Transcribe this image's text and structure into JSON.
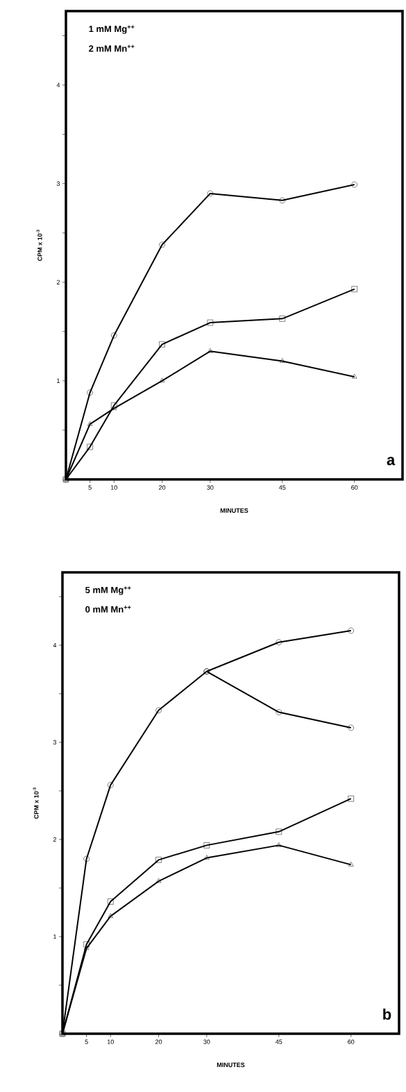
{
  "chart_data": [
    {
      "type": "line",
      "xlabel": "MINUTES",
      "ylabel": "CPM x 10$^{-3}$",
      "xlim": [
        0,
        70
      ],
      "ylim": [
        0,
        4.75
      ],
      "xticks": [
        5,
        10,
        20,
        30,
        45,
        60
      ],
      "yticks": [
        {
          "value": 0.5,
          "label": null
        },
        1,
        {
          "value": 1.5,
          "label": null
        },
        2,
        {
          "value": 2.5,
          "label": null
        },
        3,
        {
          "value": 3.5,
          "label": null
        },
        4,
        {
          "value": 4.5,
          "label": null
        }
      ],
      "annotations": [
        "1 mM Mg$^{++}$",
        "2 mM Mn$^{++}$",
        "a"
      ],
      "series": [
        {
          "color": "#000000",
          "marker": "circle",
          "x": [
            0,
            5,
            10,
            20,
            30,
            45,
            60
          ],
          "values": [
            0,
            0.88,
            1.46,
            2.38,
            2.9,
            2.83,
            2.99
          ]
        },
        {
          "color": "#000000",
          "marker": "square",
          "x": [
            0,
            5,
            10,
            20,
            30,
            45,
            60
          ],
          "values": [
            0,
            0.33,
            0.75,
            1.37,
            1.59,
            1.63,
            1.93
          ]
        },
        {
          "color": "#000000",
          "marker": "triangle",
          "x": [
            0,
            5,
            10,
            20,
            30,
            45,
            60
          ],
          "values": [
            0,
            0.56,
            0.72,
            1.0,
            1.3,
            1.2,
            1.04
          ]
        }
      ]
    },
    {
      "type": "line",
      "xlabel": "MINUTES",
      "ylabel": "CPM x 10$^{-3}$",
      "xlim": [
        0,
        70
      ],
      "ylim": [
        0,
        4.75
      ],
      "xticks": [
        5,
        10,
        20,
        30,
        45,
        60
      ],
      "yticks": [
        {
          "value": 0.5,
          "label": null
        },
        1,
        {
          "value": 1.5,
          "label": null
        },
        2,
        {
          "value": 2.5,
          "label": null
        },
        3,
        {
          "value": 3.5,
          "label": null
        },
        4,
        {
          "value": 4.5,
          "label": null
        }
      ],
      "annotations": [
        "5 mM Mg$^{++}$",
        "0 mM Mn$^{++}$",
        "b"
      ],
      "series": [
        {
          "color": "#000000",
          "marker": "circle",
          "x": [
            30,
            45,
            60
          ],
          "values": [
            3.73,
            3.31,
            3.15
          ]
        },
        {
          "color": "#000000",
          "marker": "circle",
          "x": [
            0,
            5,
            10,
            20,
            30,
            45,
            60
          ],
          "values": [
            0,
            1.8,
            2.56,
            3.33,
            3.73,
            4.03,
            4.15
          ]
        },
        {
          "color": "#000000",
          "marker": "square",
          "x": [
            0,
            5,
            10,
            20,
            30,
            45,
            60
          ],
          "values": [
            0,
            0.92,
            1.36,
            1.79,
            1.94,
            2.08,
            2.42
          ]
        },
        {
          "color": "#000000",
          "marker": "triangle",
          "x": [
            0,
            5,
            10,
            20,
            30,
            45,
            60
          ],
          "values": [
            0,
            0.88,
            1.21,
            1.57,
            1.81,
            1.94,
            1.74
          ]
        }
      ]
    }
  ]
}
